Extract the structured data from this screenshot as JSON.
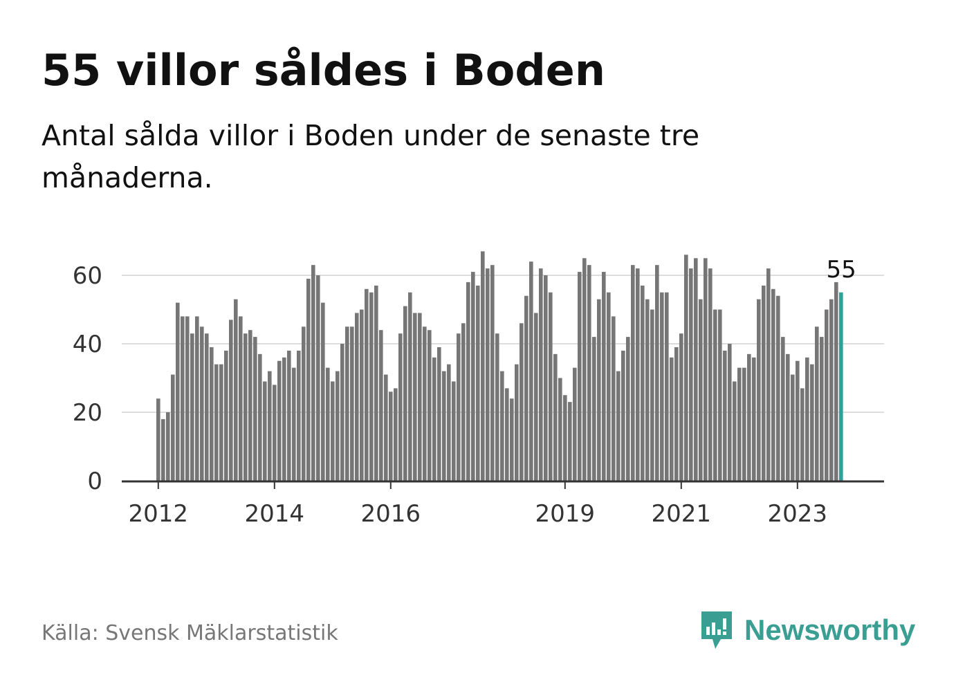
{
  "header": {
    "title": "55 villor såldes i Boden",
    "subtitle": "Antal sålda villor i Boden under de senaste tre månaderna."
  },
  "footer": {
    "source": "Källa: Svensk Mäklarstatistik",
    "brand": "Newsworthy",
    "brand_icon": "newsworthy-logo-icon"
  },
  "colors": {
    "bar": "#767676",
    "highlight": "#27a39a",
    "grid": "#dddddd",
    "axis": "#333333",
    "brand": "#3a9e93"
  },
  "chart_data": {
    "type": "bar",
    "title": "55 villor såldes i Boden",
    "xlabel": "",
    "ylabel": "",
    "ylim": [
      0,
      70
    ],
    "yticks": [
      0,
      20,
      40,
      60
    ],
    "grid": true,
    "xtick_labels": [
      {
        "label": "2012",
        "index": 0
      },
      {
        "label": "2014",
        "index": 24
      },
      {
        "label": "2016",
        "index": 48
      },
      {
        "label": "2019",
        "index": 84
      },
      {
        "label": "2021",
        "index": 108
      },
      {
        "label": "2023",
        "index": 132
      }
    ],
    "highlight_label": "55",
    "values": [
      24,
      18,
      20,
      31,
      52,
      48,
      48,
      43,
      48,
      45,
      43,
      39,
      34,
      34,
      38,
      47,
      53,
      48,
      43,
      44,
      42,
      37,
      29,
      32,
      28,
      35,
      36,
      38,
      33,
      38,
      45,
      59,
      63,
      60,
      52,
      33,
      29,
      32,
      40,
      45,
      45,
      49,
      50,
      56,
      55,
      57,
      44,
      31,
      26,
      27,
      43,
      51,
      55,
      49,
      49,
      45,
      44,
      36,
      39,
      32,
      34,
      29,
      43,
      46,
      58,
      61,
      57,
      67,
      62,
      63,
      43,
      32,
      27,
      24,
      34,
      46,
      54,
      64,
      49,
      62,
      60,
      55,
      37,
      30,
      25,
      23,
      33,
      61,
      65,
      63,
      42,
      53,
      61,
      55,
      48,
      32,
      38,
      42,
      63,
      62,
      57,
      53,
      50,
      63,
      55,
      55,
      36,
      39,
      43,
      66,
      62,
      65,
      53,
      65,
      62,
      50,
      50,
      38,
      40,
      29,
      33,
      33,
      37,
      36,
      53,
      57,
      62,
      56,
      54,
      42,
      37,
      31,
      35,
      27,
      36,
      34,
      45,
      42,
      50,
      53,
      58,
      55
    ]
  }
}
